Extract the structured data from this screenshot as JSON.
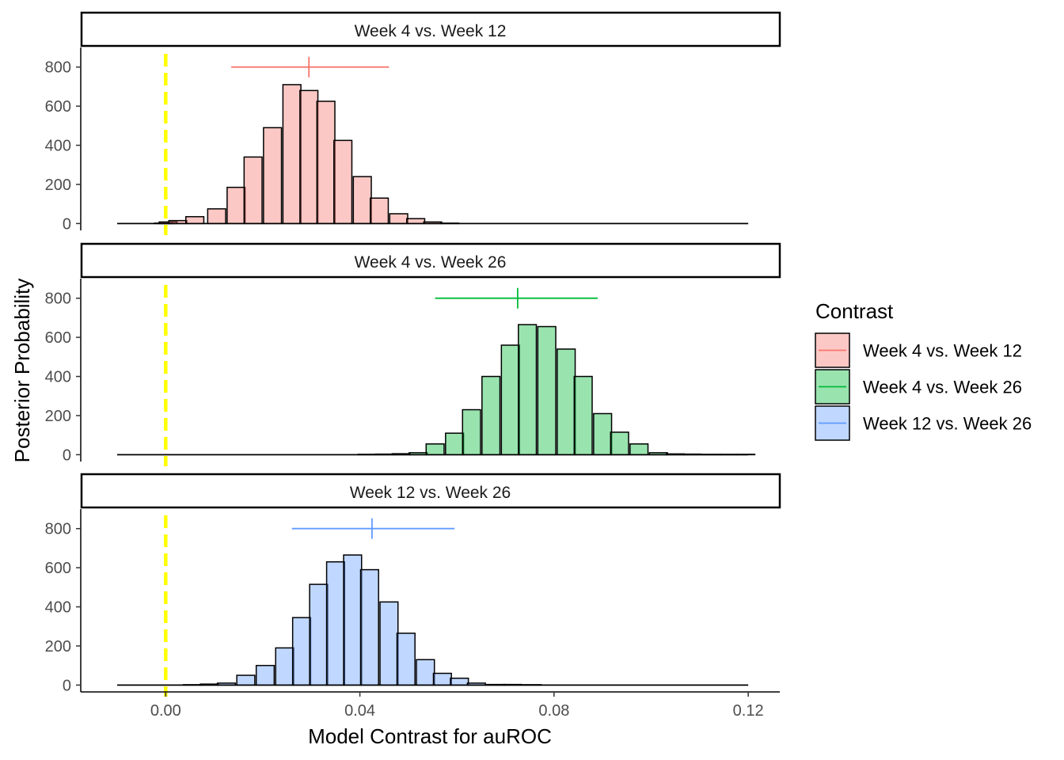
{
  "chart_data": {
    "type": "histogram",
    "facets": [
      {
        "strip_label": "Week 4 vs. Week 12",
        "series_index": 0,
        "bins": [
          {
            "x": -0.0005,
            "count": 2
          },
          {
            "x": 0.0005,
            "count": 8
          },
          {
            "x": 0.0025,
            "count": 15
          },
          {
            "x": 0.006,
            "count": 35
          },
          {
            "x": 0.0105,
            "count": 75
          },
          {
            "x": 0.0145,
            "count": 185
          },
          {
            "x": 0.018,
            "count": 340
          },
          {
            "x": 0.022,
            "count": 490
          },
          {
            "x": 0.026,
            "count": 710
          },
          {
            "x": 0.0295,
            "count": 680
          },
          {
            "x": 0.033,
            "count": 625
          },
          {
            "x": 0.0365,
            "count": 425
          },
          {
            "x": 0.0405,
            "count": 240
          },
          {
            "x": 0.044,
            "count": 130
          },
          {
            "x": 0.048,
            "count": 50
          },
          {
            "x": 0.0515,
            "count": 25
          },
          {
            "x": 0.055,
            "count": 8
          },
          {
            "x": 0.0585,
            "count": 2
          }
        ],
        "interval": {
          "center": 0.0295,
          "low": 0.0135,
          "high": 0.046,
          "y": 800
        }
      },
      {
        "strip_label": "Week 4 vs. Week 26",
        "series_index": 1,
        "bins": [
          {
            "x": 0.0415,
            "count": 2
          },
          {
            "x": 0.045,
            "count": 3
          },
          {
            "x": 0.0485,
            "count": 5
          },
          {
            "x": 0.052,
            "count": 10
          },
          {
            "x": 0.0555,
            "count": 55
          },
          {
            "x": 0.0595,
            "count": 110
          },
          {
            "x": 0.063,
            "count": 230
          },
          {
            "x": 0.067,
            "count": 400
          },
          {
            "x": 0.071,
            "count": 560
          },
          {
            "x": 0.0745,
            "count": 665
          },
          {
            "x": 0.0785,
            "count": 655
          },
          {
            "x": 0.0825,
            "count": 540
          },
          {
            "x": 0.086,
            "count": 400
          },
          {
            "x": 0.09,
            "count": 210
          },
          {
            "x": 0.0935,
            "count": 115
          },
          {
            "x": 0.0975,
            "count": 55
          },
          {
            "x": 0.1015,
            "count": 10
          },
          {
            "x": 0.105,
            "count": 4
          },
          {
            "x": 0.1085,
            "count": 3
          },
          {
            "x": 0.1125,
            "count": 2
          },
          {
            "x": 0.116,
            "count": 2
          },
          {
            "x": 0.1195,
            "count": 2
          }
        ],
        "interval": {
          "center": 0.0725,
          "low": 0.0555,
          "high": 0.089,
          "y": 800
        }
      },
      {
        "strip_label": "Week 12 vs. Week 26",
        "series_index": 2,
        "bins": [
          {
            "x": 0.0055,
            "count": 2
          },
          {
            "x": 0.009,
            "count": 5
          },
          {
            "x": 0.0125,
            "count": 10
          },
          {
            "x": 0.0165,
            "count": 50
          },
          {
            "x": 0.0205,
            "count": 100
          },
          {
            "x": 0.0245,
            "count": 190
          },
          {
            "x": 0.028,
            "count": 345
          },
          {
            "x": 0.0315,
            "count": 515
          },
          {
            "x": 0.035,
            "count": 630
          },
          {
            "x": 0.0385,
            "count": 665
          },
          {
            "x": 0.042,
            "count": 590
          },
          {
            "x": 0.046,
            "count": 425
          },
          {
            "x": 0.0495,
            "count": 265
          },
          {
            "x": 0.0535,
            "count": 130
          },
          {
            "x": 0.057,
            "count": 60
          },
          {
            "x": 0.0605,
            "count": 35
          },
          {
            "x": 0.064,
            "count": 10
          },
          {
            "x": 0.068,
            "count": 3
          },
          {
            "x": 0.0715,
            "count": 3
          },
          {
            "x": 0.0755,
            "count": 2
          }
        ],
        "interval": {
          "center": 0.0425,
          "low": 0.026,
          "high": 0.0595,
          "y": 800
        }
      }
    ],
    "series": [
      {
        "name": "Week 4 vs. Week 12",
        "fill": "#F8766D",
        "line": "#F8766D"
      },
      {
        "name": "Week 4 vs. Week 26",
        "fill": "#00BA38",
        "line": "#00BA38"
      },
      {
        "name": "Week 12 vs. Week 26",
        "fill": "#619CFF",
        "line": "#619CFF"
      }
    ],
    "fill_alpha": 0.4,
    "bin_width": 0.0037,
    "baseline_range": [
      -0.01,
      0.12
    ],
    "reference_line": {
      "x": 0,
      "color": "#FFFF00",
      "style": "dashed"
    },
    "xlabel": "Model Contrast for auROC",
    "ylabel": "Posterior Probability",
    "xlim": [
      -0.0175,
      0.1265
    ],
    "ylim": [
      -35,
      900
    ],
    "xticks": [
      0,
      0.04,
      0.08,
      0.12
    ],
    "xtick_labels": [
      "0.00",
      "0.04",
      "0.08",
      "0.12"
    ],
    "yticks": [
      0,
      200,
      400,
      600,
      800
    ],
    "ytick_labels": [
      "0",
      "200",
      "400",
      "600",
      "800"
    ],
    "legend_title": "Contrast",
    "legend_position": "right",
    "grid": false
  }
}
